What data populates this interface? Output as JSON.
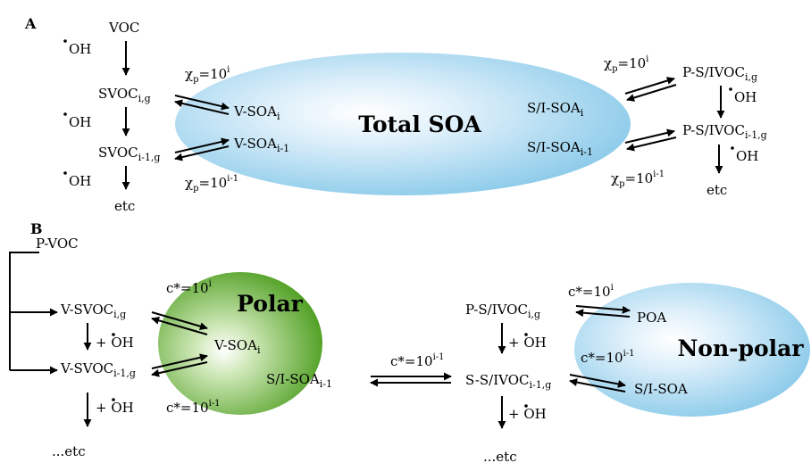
{
  "colors": {
    "blue": "#a9d7ef",
    "green": "#5fae2e",
    "ink": "#000000"
  },
  "panel_a": {
    "label": "A",
    "voc": "VOC",
    "oh1": "OH",
    "oh2": "OH",
    "oh3": "OH",
    "svoc_i": {
      "base": "SVOC",
      "sub": "i,g"
    },
    "svoc_i1": {
      "base": "SVOC",
      "sub": "i-1,g"
    },
    "etc_left": "etc",
    "chi_top": {
      "base": "χ",
      "sub": "p",
      "mid": "=10",
      "sup": "i"
    },
    "chi_bottom": {
      "base": "χ",
      "sub": "p",
      "mid": "=10",
      "sup": "i-1"
    },
    "vsoa_i": {
      "base": "V-SOA",
      "sub": "i"
    },
    "vsoa_i1": {
      "base": "V-SOA",
      "sub": "i-1"
    },
    "ellipse_title": "Total SOA",
    "sisoa_i": {
      "base": "S/I-SOA",
      "sub": "i"
    },
    "sisoa_i1": {
      "base": "S/I-SOA",
      "sub": "i-1"
    },
    "chi_right_top": {
      "base": "χ",
      "sub": "p",
      "mid": "=10",
      "sup": "i"
    },
    "chi_right_bottom": {
      "base": "χ",
      "sub": "p",
      "mid": "=10",
      "sup": "i-1"
    },
    "psivoc_i": {
      "base": "P-S/IVOC",
      "sub": "i,g"
    },
    "psivoc_i1": {
      "base": "P-S/IVOC",
      "sub": "i-1,g"
    },
    "oh_right1": "OH",
    "oh_right2": "OH",
    "etc_right": "etc"
  },
  "panel_b": {
    "label": "B",
    "pvoc": "P-VOC",
    "vsvoc_i": {
      "base": "V-SVOC",
      "sub": "i,g"
    },
    "vsvoc_i1": {
      "base": "V-SVOC",
      "sub": "i-1,g"
    },
    "oh_left1": "+ OH",
    "oh_left2": "+ OH",
    "etc_left": "...etc",
    "c_top_left": {
      "mid": "c*=10",
      "sup": "i"
    },
    "c_bottom_left": {
      "mid": "c*=10",
      "sup": "i-1"
    },
    "polar": "Polar",
    "vsoa_i": {
      "base": "V-SOA",
      "sub": "i"
    },
    "sisoa_i1": {
      "base": "S/I-SOA",
      "sub": "i-1"
    },
    "c_middle": {
      "mid": "c*=10",
      "sup": "i-1"
    },
    "psivoc_i": {
      "base": "P-S/IVOC",
      "sub": "i,g"
    },
    "ssivoc_i1": {
      "base": "S-S/IVOC",
      "sub": "i-1,g"
    },
    "oh_right1": "+ OH",
    "oh_right2": "+ OH",
    "etc_right": "...etc",
    "c_top_right": {
      "mid": "c*=10",
      "sup": "i"
    },
    "c_bottom_right": {
      "mid": "c*=10",
      "sup": "i-1"
    },
    "poa": "POA",
    "nonpolar": "Non-polar",
    "sisoa": "S/I-SOA"
  }
}
